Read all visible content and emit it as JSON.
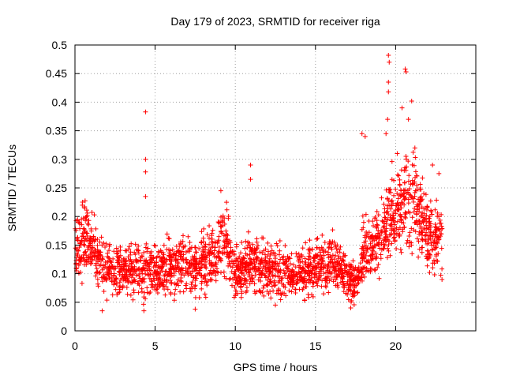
{
  "chart_data": {
    "type": "scatter",
    "title": "Day 179 of 2023, SRMTID for receiver riga",
    "xlabel": "GPS time / hours",
    "ylabel": "SRMTID / TECUs",
    "xlim": [
      0,
      25
    ],
    "ylim": [
      0,
      0.5
    ],
    "xticks": [
      0,
      5,
      10,
      15,
      20
    ],
    "yticks": [
      0,
      0.05,
      0.1,
      0.15,
      0.2,
      0.25,
      0.3,
      0.35,
      0.4,
      0.45,
      0.5
    ],
    "ytick_labels": [
      "0",
      "0.05",
      "0.1",
      "0.15",
      "0.2",
      "0.25",
      "0.3",
      "0.35",
      "0.4",
      "0.45",
      "0.5"
    ],
    "grid": true,
    "marker": "+",
    "color": "#ff0000",
    "x_range_of_data": [
      0,
      22.9
    ],
    "baseline_trend": [
      {
        "x": 0.0,
        "y": 0.13
      },
      {
        "x": 0.5,
        "y": 0.16
      },
      {
        "x": 1.0,
        "y": 0.15
      },
      {
        "x": 1.5,
        "y": 0.12
      },
      {
        "x": 2.0,
        "y": 0.11
      },
      {
        "x": 3.0,
        "y": 0.105
      },
      {
        "x": 4.0,
        "y": 0.1
      },
      {
        "x": 5.0,
        "y": 0.11
      },
      {
        "x": 6.0,
        "y": 0.115
      },
      {
        "x": 7.0,
        "y": 0.11
      },
      {
        "x": 8.0,
        "y": 0.12
      },
      {
        "x": 9.0,
        "y": 0.15
      },
      {
        "x": 9.5,
        "y": 0.16
      },
      {
        "x": 10.0,
        "y": 0.1
      },
      {
        "x": 11.0,
        "y": 0.12
      },
      {
        "x": 12.0,
        "y": 0.11
      },
      {
        "x": 13.0,
        "y": 0.1
      },
      {
        "x": 14.0,
        "y": 0.1
      },
      {
        "x": 15.0,
        "y": 0.11
      },
      {
        "x": 16.0,
        "y": 0.12
      },
      {
        "x": 17.0,
        "y": 0.09
      },
      {
        "x": 17.6,
        "y": 0.08
      },
      {
        "x": 18.0,
        "y": 0.15
      },
      {
        "x": 18.5,
        "y": 0.14
      },
      {
        "x": 19.0,
        "y": 0.16
      },
      {
        "x": 19.5,
        "y": 0.2
      },
      {
        "x": 20.0,
        "y": 0.2
      },
      {
        "x": 20.5,
        "y": 0.22
      },
      {
        "x": 21.0,
        "y": 0.24
      },
      {
        "x": 21.5,
        "y": 0.2
      },
      {
        "x": 22.0,
        "y": 0.17
      },
      {
        "x": 22.5,
        "y": 0.16
      },
      {
        "x": 22.9,
        "y": 0.15
      }
    ],
    "notable_points": [
      {
        "x": 4.4,
        "y": 0.383
      },
      {
        "x": 4.4,
        "y": 0.3
      },
      {
        "x": 4.4,
        "y": 0.278
      },
      {
        "x": 4.4,
        "y": 0.235
      },
      {
        "x": 10.95,
        "y": 0.29
      },
      {
        "x": 10.95,
        "y": 0.265
      },
      {
        "x": 9.1,
        "y": 0.245
      },
      {
        "x": 17.9,
        "y": 0.345
      },
      {
        "x": 18.1,
        "y": 0.34
      },
      {
        "x": 19.4,
        "y": 0.345
      },
      {
        "x": 19.5,
        "y": 0.37
      },
      {
        "x": 19.55,
        "y": 0.482
      },
      {
        "x": 19.6,
        "y": 0.47
      },
      {
        "x": 19.55,
        "y": 0.435
      },
      {
        "x": 19.55,
        "y": 0.418
      },
      {
        "x": 20.6,
        "y": 0.458
      },
      {
        "x": 20.65,
        "y": 0.453
      },
      {
        "x": 20.4,
        "y": 0.39
      },
      {
        "x": 21.0,
        "y": 0.402
      },
      {
        "x": 20.8,
        "y": 0.37
      },
      {
        "x": 21.2,
        "y": 0.32
      },
      {
        "x": 20.1,
        "y": 0.31
      },
      {
        "x": 22.3,
        "y": 0.29
      },
      {
        "x": 22.7,
        "y": 0.275
      },
      {
        "x": 1.7,
        "y": 0.035
      },
      {
        "x": 4.3,
        "y": 0.035
      },
      {
        "x": 7.5,
        "y": 0.038
      },
      {
        "x": 17.2,
        "y": 0.04
      },
      {
        "x": 12.5,
        "y": 0.045
      }
    ]
  }
}
